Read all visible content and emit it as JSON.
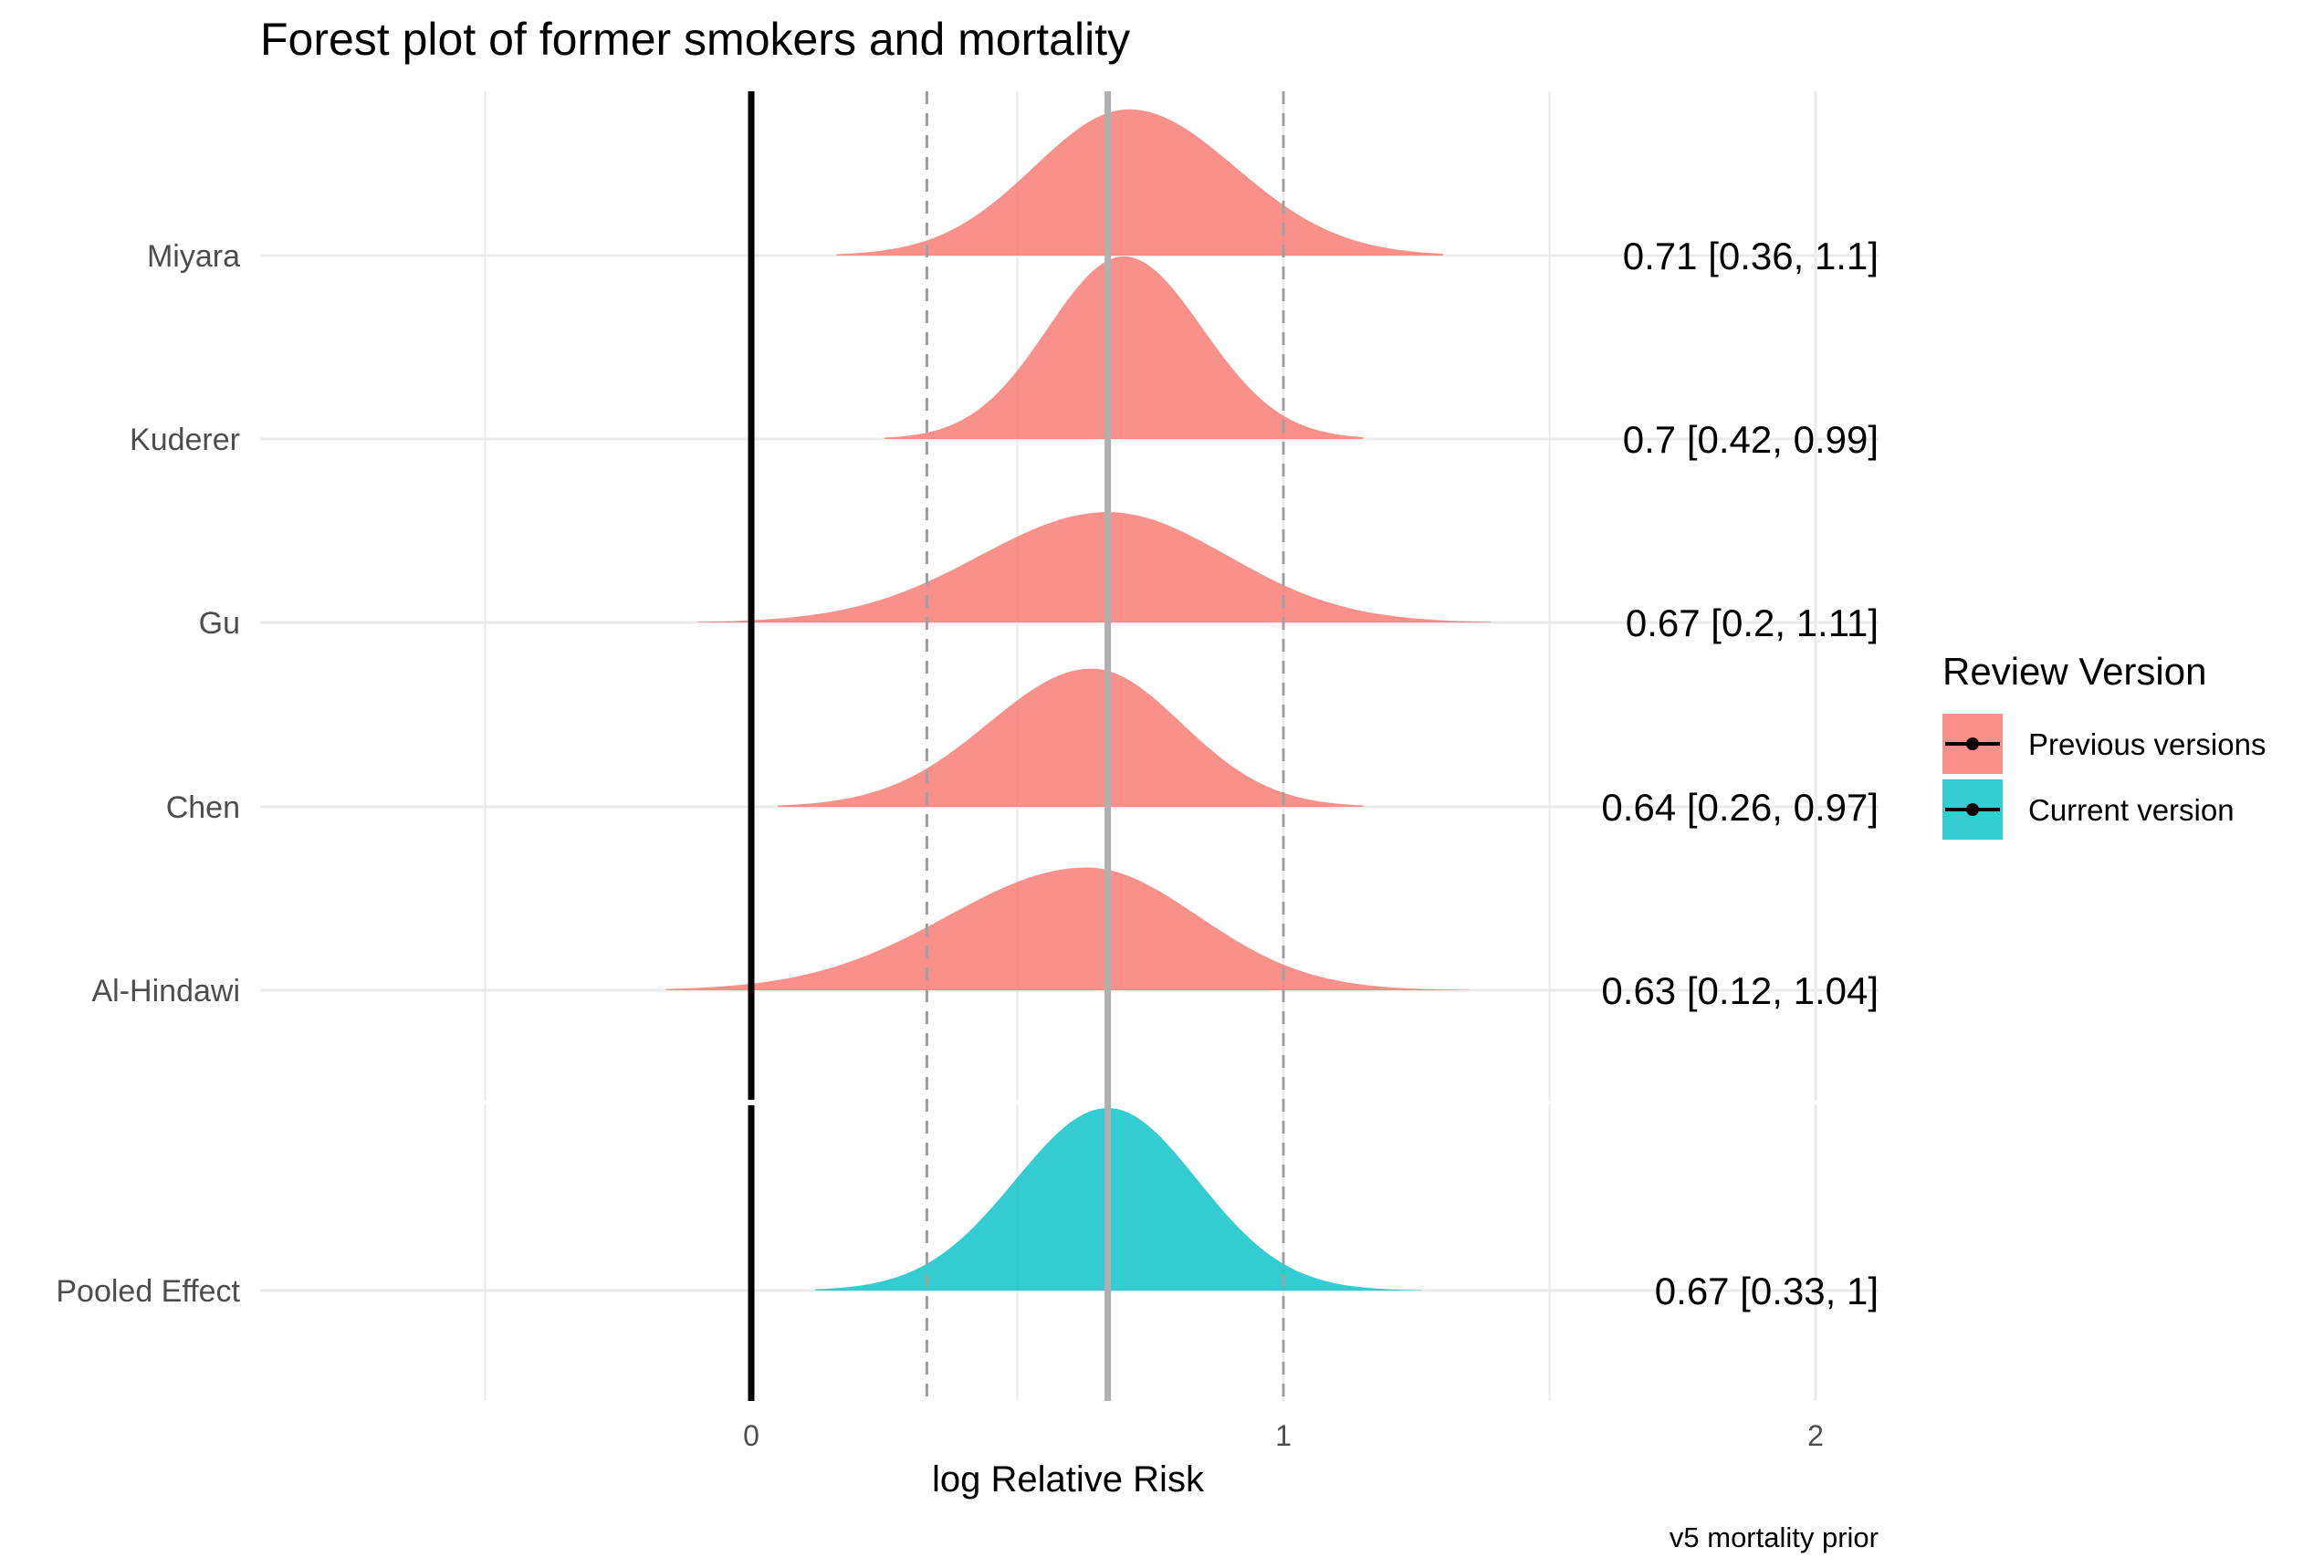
{
  "chart_data": {
    "type": "forest-density",
    "title": "Forest plot of former smokers and mortality",
    "xlabel": "log Relative Risk",
    "ylabel": "",
    "caption": "v5 mortality prior",
    "xlim": [
      -0.92,
      2.12
    ],
    "x_ticks": [
      0,
      1,
      2
    ],
    "grid": true,
    "null_line": 0,
    "pooled_estimate": 0.67,
    "pooled_interval": [
      0.33,
      1
    ],
    "legend": {
      "title": "Review Version",
      "position": "right",
      "entries": [
        {
          "label": "Previous versions",
          "color": "#F8766D"
        },
        {
          "label": "Current version",
          "color": "#00BFC4"
        }
      ]
    },
    "studies": [
      {
        "name": "Miyara",
        "estimate": 0.71,
        "lower": 0.36,
        "upper": 1.1,
        "label": "0.71 [0.36, 1.1]",
        "group": "Previous versions",
        "range": [
          0.16,
          1.3
        ],
        "peak_height": 0.9
      },
      {
        "name": "Kuderer",
        "estimate": 0.7,
        "lower": 0.42,
        "upper": 0.99,
        "label": "0.7 [0.42, 0.99]",
        "group": "Previous versions",
        "range": [
          0.25,
          1.15
        ],
        "peak_height": 1.0
      },
      {
        "name": "Gu",
        "estimate": 0.67,
        "lower": 0.2,
        "upper": 1.11,
        "label": "0.67 [0.2, 1.11]",
        "group": "Previous versions",
        "range": [
          -0.1,
          1.39
        ],
        "peak_height": 0.78
      },
      {
        "name": "Chen",
        "estimate": 0.64,
        "lower": 0.26,
        "upper": 0.97,
        "label": "0.64 [0.26, 0.97]",
        "group": "Previous versions",
        "range": [
          0.05,
          1.15
        ],
        "peak_height": 0.87
      },
      {
        "name": "Al-Hindawi",
        "estimate": 0.63,
        "lower": 0.12,
        "upper": 1.04,
        "label": "0.63 [0.12, 1.04]",
        "group": "Previous versions",
        "range": [
          -0.16,
          1.35
        ],
        "peak_height": 0.82
      },
      {
        "name": "Pooled Effect",
        "estimate": 0.67,
        "lower": 0.33,
        "upper": 1,
        "label": "0.67 [0.33, 1]",
        "group": "Current version",
        "range": [
          0.12,
          1.26
        ],
        "peak_height": 1.0
      }
    ]
  }
}
